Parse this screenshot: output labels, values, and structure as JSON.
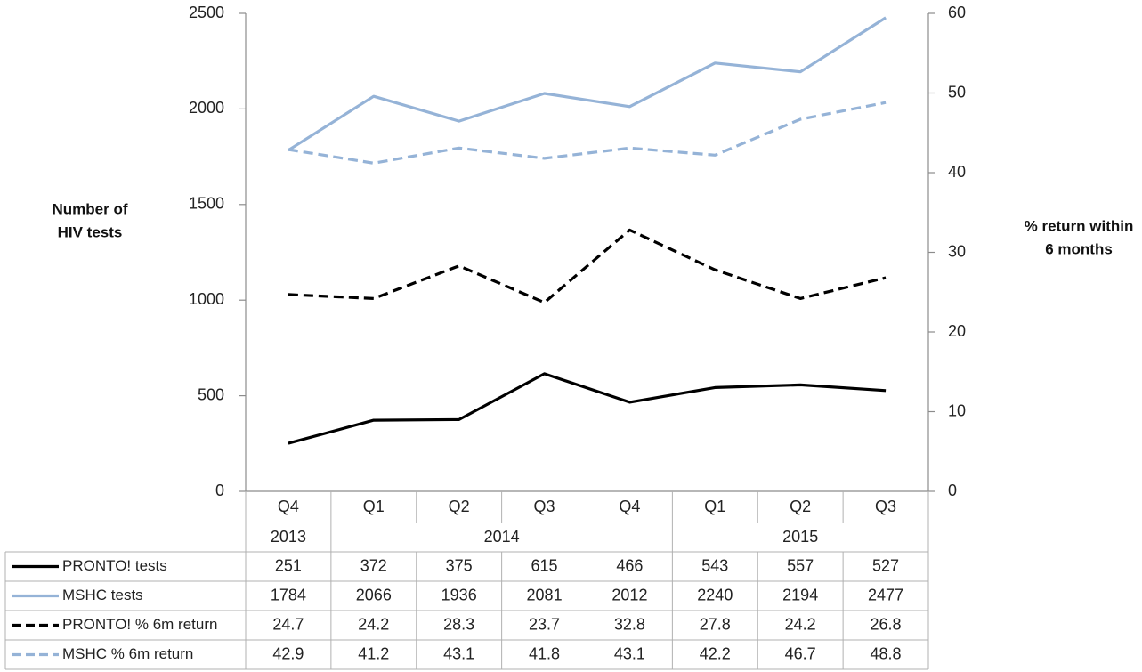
{
  "chart_data": {
    "type": "line",
    "categories": [
      "Q4",
      "Q1",
      "Q2",
      "Q3",
      "Q4",
      "Q1",
      "Q2",
      "Q3"
    ],
    "years": [
      {
        "label": "2013",
        "span": 1
      },
      {
        "label": "2014",
        "span": 4
      },
      {
        "label": "2015",
        "span": 3
      }
    ],
    "left_axis": {
      "label_lines": [
        "Number of",
        "HIV tests"
      ],
      "ylim": [
        0,
        2500
      ],
      "ticks": [
        0,
        500,
        1000,
        1500,
        2000,
        2500
      ]
    },
    "right_axis": {
      "label_lines": [
        "% return within",
        "6 months"
      ],
      "ylim": [
        0,
        60
      ],
      "ticks": [
        0,
        10,
        20,
        30,
        40,
        50,
        60
      ]
    },
    "series": [
      {
        "name": "PRONTO! tests",
        "axis": "left",
        "color": "#000000",
        "dashed": false,
        "values": [
          251,
          372,
          375,
          615,
          466,
          543,
          557,
          527
        ],
        "labels": [
          "251",
          "372",
          "375",
          "615",
          "466",
          "543",
          "557",
          "527"
        ]
      },
      {
        "name": "MSHC tests",
        "axis": "left",
        "color": "#95b3d7",
        "dashed": false,
        "values": [
          1784,
          2066,
          1936,
          2081,
          2012,
          2240,
          2194,
          2477
        ],
        "labels": [
          "1784",
          "2066",
          "1936",
          "2081",
          "2012",
          "2240",
          "2194",
          "2477"
        ]
      },
      {
        "name": "PRONTO! % 6m return",
        "axis": "right",
        "color": "#000000",
        "dashed": true,
        "values": [
          24.7,
          24.2,
          28.3,
          23.7,
          32.8,
          27.8,
          24.2,
          26.8
        ],
        "labels": [
          "24.7",
          "24.2",
          "28.3",
          "23.7",
          "32.8",
          "27.8",
          "24.2",
          "26.8"
        ]
      },
      {
        "name": "MSHC % 6m return",
        "axis": "right",
        "color": "#95b3d7",
        "dashed": true,
        "values": [
          42.9,
          41.2,
          43.1,
          41.8,
          43.1,
          42.2,
          46.7,
          48.8
        ],
        "labels": [
          "42.9",
          "41.2",
          "43.1",
          "41.8",
          "43.1",
          "42.2",
          "46.7",
          "48.8"
        ]
      }
    ],
    "grid": false,
    "legend": "data-table"
  }
}
